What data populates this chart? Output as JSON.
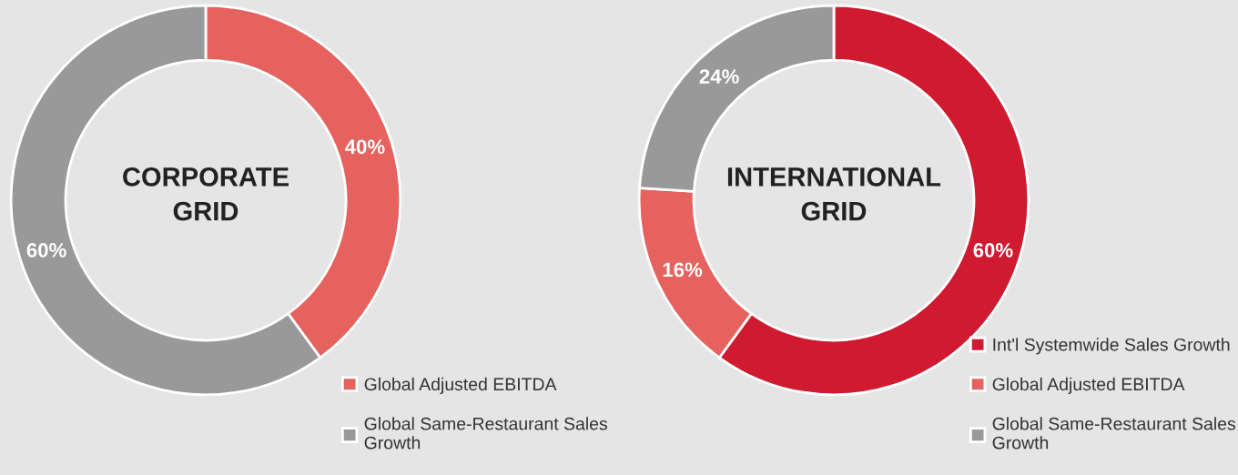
{
  "chart_data": [
    {
      "type": "donut",
      "title": "CORPORATE\nGRID",
      "categories": [
        "Global Adjusted EBITDA",
        "Global Same-Restaurant Sales\nGrowth"
      ],
      "values": [
        40,
        60
      ],
      "value_labels": [
        "40%",
        "60%"
      ],
      "colors": [
        "#e5625e",
        "#999999"
      ],
      "legend": "bottom right"
    },
    {
      "type": "donut",
      "title": "INTERNATIONAL\nGRID",
      "categories": [
        "Int'l Systemwide Sales Growth",
        "Global Adjusted EBITDA",
        "Global Same-Restaurant Sales\nGrowth"
      ],
      "values": [
        60,
        16,
        24
      ],
      "value_labels": [
        "60%",
        "16%",
        "24%"
      ],
      "colors": [
        "#cf1a30",
        "#e5625e",
        "#999999"
      ],
      "legend": "bottom right"
    }
  ]
}
